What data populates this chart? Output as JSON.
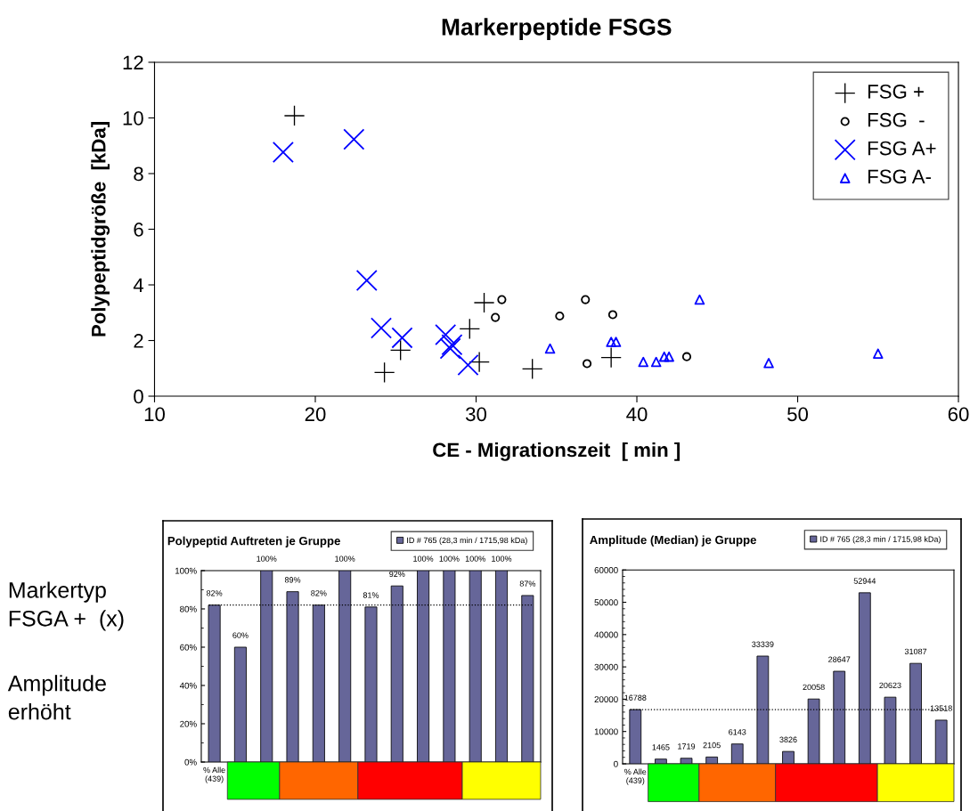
{
  "chart_data": [
    {
      "type": "scatter",
      "title": "Markerpeptide FSGS",
      "xlabel": "CE - Migrationszeit  [ min ]",
      "ylabel": "Polypeptidgröße  [kDa]",
      "xlim": [
        10,
        60
      ],
      "xticks": [
        10,
        20,
        30,
        40,
        50,
        60
      ],
      "ylim": [
        0,
        12
      ],
      "yticks": [
        0,
        2,
        4,
        6,
        8,
        10,
        12
      ],
      "grid": false,
      "legend": "top right",
      "series": [
        {
          "name": "FSG +",
          "color": "#000000",
          "marker": "plus",
          "x": [
            18.7,
            24.3,
            25.3,
            29.6,
            30.5,
            30.2,
            33.5,
            38.4
          ],
          "values": [
            10.08,
            0.85,
            1.65,
            2.42,
            3.36,
            1.23,
            0.98,
            1.39
          ]
        },
        {
          "name": "FSG  -",
          "color": "#000000",
          "marker": "circle",
          "x": [
            31.6,
            31.2,
            35.2,
            36.8,
            38.5,
            36.9,
            43.1
          ],
          "values": [
            3.47,
            2.83,
            2.88,
            3.47,
            2.93,
            1.17,
            1.42
          ]
        },
        {
          "name": "FSG A+",
          "color": "#0000ff",
          "marker": "cross",
          "x": [
            18.0,
            22.4,
            23.2,
            24.1,
            25.4,
            28.1,
            28.5,
            28.4,
            29.5
          ],
          "values": [
            8.77,
            9.23,
            4.16,
            2.45,
            2.1,
            2.21,
            1.85,
            1.71,
            1.12
          ]
        },
        {
          "name": "FSG A-",
          "color": "#0000ff",
          "marker": "triangle",
          "x": [
            34.6,
            38.4,
            38.7,
            40.4,
            41.2,
            41.7,
            42.0,
            43.9,
            48.2,
            55.0
          ],
          "values": [
            1.71,
            1.95,
            1.95,
            1.23,
            1.23,
            1.42,
            1.42,
            3.47,
            1.19,
            1.53
          ]
        }
      ]
    },
    {
      "type": "other",
      "annotations": [
        "Markertyp",
        "FSGA +  (x)",
        "Amplitude",
        "erhöht"
      ]
    },
    {
      "type": "bar",
      "title": "Polypeptid Auftreten je Gruppe",
      "categories": [
        "% Alle\n(439)",
        null,
        null,
        null,
        null,
        null,
        null,
        null,
        null,
        null,
        null,
        null,
        null
      ],
      "ylim": [
        0,
        100
      ],
      "yticks": [
        {
          "value": 0,
          "label": "0%"
        },
        {
          "value": 20,
          "label": "20%"
        },
        {
          "value": 40,
          "label": "40%"
        },
        {
          "value": 60,
          "label": "60%"
        },
        {
          "value": 80,
          "label": "80%"
        },
        {
          "value": 100,
          "label": "100%"
        }
      ],
      "legend": "top right",
      "grid": false,
      "series": [
        {
          "name": "ID # 765 (28,3 min / 1715,98 kDa)",
          "color": "#666699",
          "values": [
            82,
            60,
            100,
            89,
            82,
            100,
            81,
            92,
            100,
            100,
            100,
            100,
            87
          ],
          "value_labels": [
            "82%",
            "60%",
            "100%",
            "89%",
            "82%",
            "100%",
            "81%",
            "92%",
            "100%",
            "100%",
            "100%",
            "100%",
            "87%"
          ]
        }
      ],
      "ref_lines": [
        {
          "axis": "y",
          "value": 82,
          "color": "#000000",
          "line_style": "dotted"
        }
      ]
    },
    {
      "type": "bar",
      "title": "Amplitude (Median) je Gruppe",
      "categories": [
        "% Alle\n(439)",
        null,
        null,
        null,
        null,
        null,
        null,
        null,
        null,
        null,
        null,
        null,
        null
      ],
      "ylim": [
        0,
        60000
      ],
      "yticks": [
        0,
        10000,
        20000,
        30000,
        40000,
        50000,
        60000
      ],
      "legend": "top right",
      "grid": false,
      "data_labels": true,
      "series": [
        {
          "name": "ID # 765 (28,3 min / 1715,98 kDa)",
          "color": "#666699",
          "values": [
            16788,
            1465,
            1719,
            2105,
            6143,
            33339,
            3826,
            20058,
            28647,
            52944,
            20623,
            31087,
            13518
          ]
        }
      ],
      "ref_lines": [
        {
          "axis": "y",
          "value": 16788,
          "color": "#000000",
          "line_style": "dotted"
        }
      ]
    }
  ]
}
